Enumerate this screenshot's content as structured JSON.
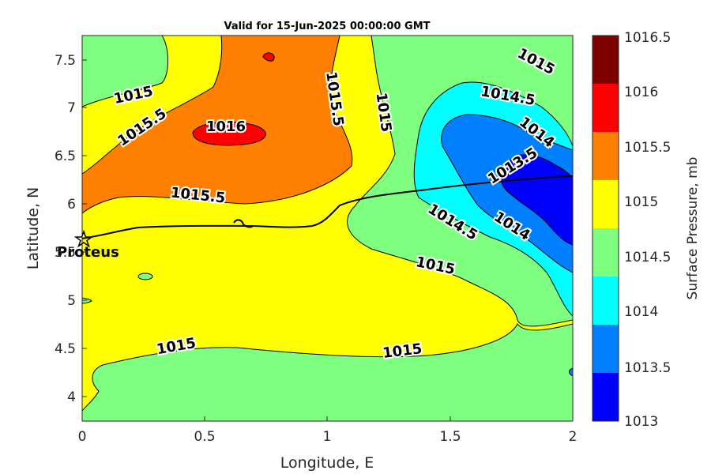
{
  "chart_data": {
    "type": "contourf",
    "title": "Valid for 15-Jun-2025 00:00:00 GMT",
    "xlabel": "Longitude, E",
    "ylabel": "Latitude, N",
    "xlim": [
      0,
      2
    ],
    "ylim": [
      3.75,
      7.75
    ],
    "xticks": [
      "0",
      "0.5",
      "1",
      "1.5",
      "2"
    ],
    "yticks": [
      "4",
      "4.5",
      "5",
      "5.5",
      "6",
      "6.5",
      "7",
      "7.5"
    ],
    "colorbar": {
      "label": "Surface Pressure, mb",
      "levels": [
        "1013",
        "1013.5",
        "1014",
        "1014.5",
        "1015",
        "1015.5",
        "1016",
        "1016.5"
      ],
      "colors": [
        "#0000ff",
        "#007fff",
        "#00ffff",
        "#7fff7f",
        "#ffff00",
        "#ff7f00",
        "#ff0000",
        "#7f0000"
      ]
    },
    "contour_labels": [
      "1015",
      "1015.5",
      "1016",
      "1015.5",
      "1015",
      "1015",
      "1014.5",
      "1014",
      "1013.5",
      "1015.5",
      "1014.5",
      "1014",
      "1015",
      "1015",
      "1015"
    ],
    "station": {
      "name": "Proteus",
      "lon": 0.01,
      "lat": 5.65
    },
    "track": [
      [
        0.0,
        5.65
      ],
      [
        0.3,
        5.78
      ],
      [
        0.6,
        5.78
      ],
      [
        0.8,
        5.75
      ],
      [
        1.0,
        5.8
      ],
      [
        1.2,
        6.0
      ],
      [
        1.5,
        6.18
      ],
      [
        1.8,
        6.28
      ],
      [
        2.0,
        6.3
      ]
    ]
  }
}
